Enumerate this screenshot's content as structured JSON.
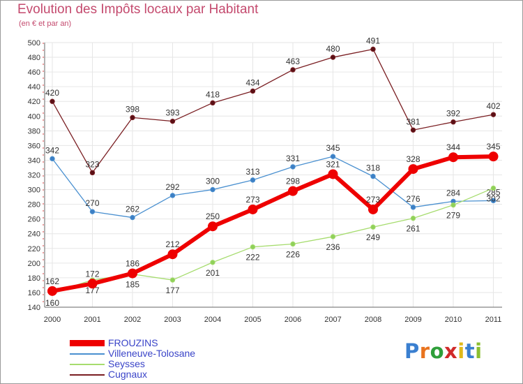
{
  "header": {
    "title": "Evolution des Impôts locaux par Habitant",
    "subtitle": "(en € et par an)"
  },
  "colors": {
    "title": "#c44a6e",
    "legend_text": "#3a44c8",
    "FROUZINS": "#ee0000",
    "Villeneuve-Tolosane": "#4a90d0",
    "Seysses": "#a6dc6e",
    "Cugnaux": "#7a1e22"
  },
  "chart_data": {
    "type": "line",
    "x": [
      "2000",
      "2001",
      "2002",
      "2003",
      "2004",
      "2005",
      "2006",
      "2007",
      "2008",
      "2009",
      "2010",
      "2011"
    ],
    "ylim": [
      140,
      500
    ],
    "yticks": [
      140,
      160,
      180,
      200,
      220,
      240,
      260,
      280,
      300,
      320,
      340,
      360,
      380,
      400,
      420,
      440,
      460,
      480,
      500
    ],
    "grid": true,
    "legend_position": "bottom-left",
    "series": [
      {
        "name": "Cugnaux",
        "values": [
          420,
          323,
          398,
          393,
          418,
          434,
          463,
          480,
          491,
          381,
          392,
          402
        ]
      },
      {
        "name": "Villeneuve-Tolosane",
        "values": [
          342,
          270,
          262,
          292,
          300,
          313,
          331,
          345,
          318,
          276,
          284,
          285
        ]
      },
      {
        "name": "Seysses",
        "values": [
          160,
          177,
          185,
          177,
          201,
          222,
          226,
          236,
          249,
          261,
          279,
          302
        ]
      },
      {
        "name": "FROUZINS",
        "values": [
          162,
          172,
          186,
          212,
          250,
          273,
          298,
          321,
          273,
          328,
          344,
          345
        ]
      }
    ]
  },
  "legend": [
    {
      "label": "FROUZINS"
    },
    {
      "label": "Villeneuve-Tolosane"
    },
    {
      "label": "Seysses"
    },
    {
      "label": "Cugnaux"
    }
  ],
  "logo": {
    "text": "Proxiti",
    "letter_colors": [
      "#3a7fd0",
      "#e9731e",
      "#2f9f3a",
      "#d02a2a",
      "#e0b91a",
      "#3a7fd0",
      "#8bbf30"
    ]
  }
}
